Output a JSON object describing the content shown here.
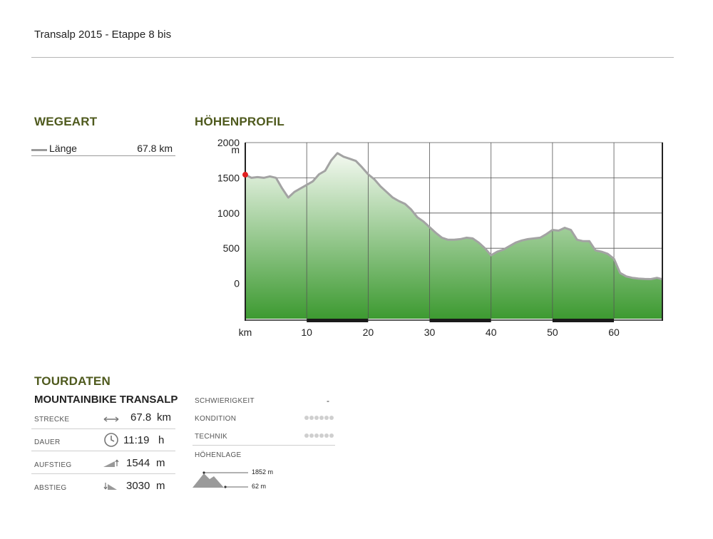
{
  "page": {
    "title": "Transalp 2015 - Etappe 8 bis"
  },
  "wegeart": {
    "heading": "WEGEART",
    "legend": [
      {
        "label": "Länge",
        "value": "67.8 km",
        "color": "#9a9a9a"
      }
    ]
  },
  "hoehenprofil": {
    "heading": "HÖHENPROFIL"
  },
  "chart_data": {
    "type": "area",
    "title": "HÖHENPROFIL",
    "ylabel": "m",
    "xlabel": "km",
    "xlim": [
      0,
      68
    ],
    "ylim": [
      -500,
      2000
    ],
    "yticks": [
      2000,
      1500,
      1000,
      500,
      0
    ],
    "ytick_labels": [
      "2000",
      "1500",
      "1000",
      "500",
      "0"
    ],
    "xticks": [
      10,
      20,
      30,
      40,
      50,
      60
    ],
    "xtick_labels": [
      "10",
      "20",
      "30",
      "40",
      "50",
      "60"
    ],
    "grid": true,
    "colors": {
      "line": "#a3a3a3",
      "fill_top": "#f4f9f1",
      "fill_bottom": "#3d9a31",
      "start_marker": "#e02020",
      "axis": "#222222"
    },
    "series": [
      {
        "x": [
          0,
          1,
          2,
          3,
          4,
          5,
          6,
          7,
          8,
          9,
          10,
          11,
          12,
          13,
          14,
          15,
          16,
          17,
          18,
          19,
          20,
          21,
          22,
          23,
          24,
          25,
          26,
          27,
          28,
          29,
          30,
          31,
          32,
          33,
          34,
          35,
          36,
          37,
          38,
          39,
          40,
          41,
          42,
          43,
          44,
          45,
          46,
          47,
          48,
          49,
          50,
          51,
          52,
          53,
          54,
          55,
          56,
          57,
          58,
          59,
          60,
          61,
          62,
          63,
          64,
          65,
          66,
          67,
          67.8
        ],
        "y": [
          1544,
          1500,
          1510,
          1500,
          1520,
          1500,
          1350,
          1220,
          1300,
          1350,
          1400,
          1450,
          1550,
          1600,
          1750,
          1850,
          1800,
          1770,
          1740,
          1650,
          1550,
          1480,
          1380,
          1300,
          1220,
          1170,
          1130,
          1050,
          940,
          880,
          800,
          720,
          650,
          620,
          620,
          630,
          650,
          640,
          580,
          500,
          400,
          450,
          480,
          530,
          580,
          610,
          630,
          640,
          650,
          700,
          760,
          750,
          790,
          760,
          620,
          600,
          600,
          470,
          450,
          420,
          350,
          150,
          100,
          80,
          70,
          65,
          62,
          80,
          62
        ]
      }
    ]
  },
  "tourdaten": {
    "heading": "TOURDATEN",
    "subtitle": "MOUNTAINBIKE TRANSALP",
    "stats": [
      {
        "label": "STRECKE",
        "icon": "distance-arrows-icon",
        "value": "67.8",
        "unit": "km"
      },
      {
        "label": "DAUER",
        "icon": "clock-icon",
        "value": "11:19",
        "unit": "h"
      },
      {
        "label": "AUFSTIEG",
        "icon": "ascent-icon",
        "value": "1544",
        "unit": "m"
      },
      {
        "label": "ABSTIEG",
        "icon": "descent-icon",
        "value": "3030",
        "unit": "m"
      }
    ],
    "details": [
      {
        "label": "SCHWIERIGKEIT",
        "value": "-"
      },
      {
        "label": "KONDITION",
        "rating": 0,
        "max": 6
      },
      {
        "label": "TECHNIK",
        "rating": 0,
        "max": 6
      }
    ],
    "hoehenlage": {
      "label": "HÖHENLAGE",
      "max": "1852 m",
      "min": "62 m"
    }
  }
}
